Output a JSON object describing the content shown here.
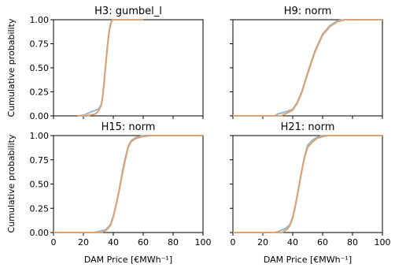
{
  "chart_data": [
    {
      "type": "line",
      "title": "H3: gumbel_l",
      "ylabel": "Cumulative probability",
      "xlabel": "",
      "xlim": [
        0,
        100
      ],
      "ylim": [
        0,
        1
      ],
      "xticks": [],
      "yticks": [
        "0.00",
        "0.25",
        "0.50",
        "0.75",
        "1.00"
      ],
      "grid": false,
      "series": [
        {
          "color": "#8fb8d8",
          "x": [
            16,
            20,
            25,
            30,
            32,
            33,
            34,
            35,
            36,
            37,
            38,
            39,
            40,
            60
          ],
          "y": [
            0,
            0.005,
            0.04,
            0.07,
            0.12,
            0.22,
            0.38,
            0.55,
            0.72,
            0.86,
            0.95,
            0.99,
            1.0,
            1.0
          ]
        },
        {
          "color": "#e0a070",
          "x": [
            16,
            22,
            28,
            30,
            32,
            33,
            34,
            35,
            36,
            37,
            38,
            39,
            40,
            60
          ],
          "y": [
            0,
            0.0,
            0.02,
            0.05,
            0.11,
            0.21,
            0.37,
            0.54,
            0.71,
            0.85,
            0.94,
            0.99,
            1.0,
            1.0
          ]
        }
      ]
    },
    {
      "type": "line",
      "title": "H9: norm",
      "ylabel": "",
      "xlabel": "",
      "xlim": [
        0,
        100
      ],
      "ylim": [
        0,
        1
      ],
      "xticks": [],
      "yticks": [],
      "grid": false,
      "series": [
        {
          "color": "#8fb8d8",
          "x": [
            0,
            28,
            30,
            35,
            40,
            43,
            46,
            50,
            55,
            60,
            65,
            70,
            75,
            100
          ],
          "y": [
            0,
            0.0,
            0.02,
            0.04,
            0.07,
            0.14,
            0.25,
            0.45,
            0.68,
            0.85,
            0.94,
            0.99,
            1.0,
            1.0
          ]
        },
        {
          "color": "#e0a070",
          "x": [
            0,
            32,
            35,
            40,
            43,
            46,
            50,
            55,
            60,
            65,
            70,
            75,
            100
          ],
          "y": [
            0,
            0.0,
            0.02,
            0.06,
            0.13,
            0.24,
            0.44,
            0.67,
            0.84,
            0.93,
            0.98,
            1.0,
            1.0
          ]
        }
      ]
    },
    {
      "type": "line",
      "title": "H15: norm",
      "ylabel": "Cumulative probability",
      "xlabel": "DAM Price [€MWh⁻¹]",
      "xlim": [
        0,
        100
      ],
      "ylim": [
        0,
        1
      ],
      "xticks": [
        "0",
        "20",
        "40",
        "60",
        "80",
        "100"
      ],
      "yticks": [
        "0.00",
        "0.25",
        "0.50",
        "0.75",
        "1.00"
      ],
      "grid": false,
      "series": [
        {
          "color": "#8fb8d8",
          "x": [
            0,
            27,
            30,
            35,
            38,
            40,
            42,
            44,
            46,
            48,
            50,
            52,
            55,
            60,
            65,
            100
          ],
          "y": [
            0,
            0.0,
            0.01,
            0.03,
            0.08,
            0.17,
            0.3,
            0.45,
            0.62,
            0.77,
            0.89,
            0.95,
            0.98,
            1.0,
            1.0,
            1.0
          ]
        },
        {
          "color": "#e0a070",
          "x": [
            0,
            32,
            35,
            38,
            40,
            42,
            44,
            46,
            48,
            50,
            52,
            55,
            60,
            65,
            100
          ],
          "y": [
            0,
            0.0,
            0.02,
            0.07,
            0.16,
            0.29,
            0.44,
            0.6,
            0.75,
            0.88,
            0.94,
            0.97,
            0.99,
            1.0,
            1.0
          ]
        }
      ]
    },
    {
      "type": "line",
      "title": "H21: norm",
      "ylabel": "",
      "xlabel": "DAM Price [€MWh⁻¹]",
      "xlim": [
        0,
        100
      ],
      "ylim": [
        0,
        1
      ],
      "xticks": [
        "0",
        "20",
        "40",
        "60",
        "80",
        "100"
      ],
      "yticks": [],
      "grid": false,
      "series": [
        {
          "color": "#8fb8d8",
          "x": [
            0,
            28,
            30,
            35,
            38,
            40,
            42,
            44,
            46,
            48,
            50,
            53,
            56,
            60,
            62,
            100
          ],
          "y": [
            0,
            0.0,
            0.01,
            0.04,
            0.08,
            0.16,
            0.3,
            0.47,
            0.64,
            0.79,
            0.9,
            0.95,
            0.98,
            1.0,
            1.0,
            1.0
          ]
        },
        {
          "color": "#e0a070",
          "x": [
            0,
            33,
            36,
            38,
            40,
            42,
            44,
            46,
            48,
            50,
            53,
            56,
            60,
            64,
            100
          ],
          "y": [
            0,
            0.0,
            0.03,
            0.07,
            0.15,
            0.29,
            0.46,
            0.63,
            0.78,
            0.88,
            0.93,
            0.97,
            0.99,
            1.0,
            1.0
          ]
        }
      ]
    }
  ]
}
